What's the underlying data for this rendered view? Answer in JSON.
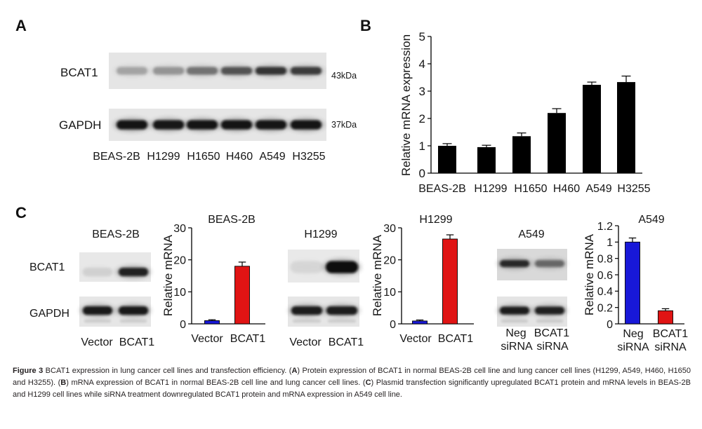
{
  "panel_labels": {
    "a": "A",
    "b": "B",
    "c": "C"
  },
  "panel_a": {
    "rows": [
      {
        "label": "BCAT1",
        "size": "43kDa",
        "band_intensity": [
          0.24,
          0.3,
          0.45,
          0.6,
          0.76,
          0.72
        ]
      },
      {
        "label": "GAPDH",
        "size": "37kDa",
        "band_intensity": [
          0.95,
          0.93,
          0.95,
          0.95,
          0.94,
          0.95
        ]
      }
    ],
    "lanes": [
      "BEAS-2B",
      "H1299",
      "H1650",
      "H460",
      "A549",
      "H3255"
    ]
  },
  "panel_c": {
    "row_labels": [
      "BCAT1",
      "GAPDH"
    ],
    "blots": [
      {
        "title": "BEAS-2B",
        "lanes": [
          [
            "Vector"
          ],
          [
            "BCAT1"
          ]
        ],
        "band_intensity": [
          [
            0.08,
            0.88
          ],
          [
            0.92,
            0.92
          ]
        ]
      },
      {
        "title": "H1299",
        "lanes": [
          [
            "Vector"
          ],
          [
            "BCAT1"
          ]
        ],
        "band_intensity": [
          [
            0.06,
            1.0
          ],
          [
            0.9,
            0.9
          ]
        ]
      },
      {
        "title": "A549",
        "lanes": [
          [
            "Neg",
            "siRNA"
          ],
          [
            "BCAT1",
            "siRNA"
          ]
        ],
        "band_intensity": [
          [
            0.82,
            0.48
          ],
          [
            0.9,
            0.88
          ]
        ]
      }
    ]
  },
  "chart_data": [
    {
      "type": "bar",
      "categories": [
        "BEAS-2B",
        "H1299",
        "H1650",
        "H460",
        "A549",
        "H3255"
      ],
      "values": [
        1.0,
        0.95,
        1.35,
        2.2,
        3.23,
        3.33
      ],
      "errors": [
        0.08,
        0.07,
        0.12,
        0.16,
        0.1,
        0.22
      ],
      "ylabel": "Relative mRNA expression",
      "ylim": [
        0,
        5
      ],
      "yticks": [
        0,
        1,
        2,
        3,
        4,
        5
      ],
      "colors": [
        "#000000",
        "#000000",
        "#000000",
        "#000000",
        "#000000",
        "#000000"
      ],
      "grid": false
    },
    {
      "type": "bar",
      "title": "BEAS-2B",
      "categories": [
        "Vector",
        "BCAT1"
      ],
      "values": [
        1.0,
        18.0
      ],
      "errors": [
        0.3,
        1.3
      ],
      "ylabel": "Relative mRNA",
      "ylim": [
        0,
        30
      ],
      "yticks": [
        0,
        10,
        20,
        30
      ],
      "colors": [
        "#1818d8",
        "#e01414"
      ],
      "grid": false
    },
    {
      "type": "bar",
      "title": "H1299",
      "categories": [
        "Vector",
        "BCAT1"
      ],
      "values": [
        0.9,
        26.5
      ],
      "errors": [
        0.3,
        1.3
      ],
      "ylabel": "Relative mRNA",
      "ylim": [
        0,
        30
      ],
      "yticks": [
        0,
        10,
        20,
        30
      ],
      "colors": [
        "#1818d8",
        "#e01414"
      ],
      "grid": false
    },
    {
      "type": "bar",
      "title": "A549",
      "categories": [
        "Neg siRNA",
        "BCAT1 siRNA"
      ],
      "values": [
        1.0,
        0.16
      ],
      "errors": [
        0.05,
        0.025
      ],
      "ylabel": "Relative mRNA",
      "ylim": [
        0,
        1.2
      ],
      "yticks": [
        0,
        0.2,
        0.4,
        0.6,
        0.8,
        1,
        1.2
      ],
      "colors": [
        "#1818d8",
        "#e01414"
      ],
      "grid": false
    }
  ],
  "caption": {
    "segments": [
      "Figure 3",
      " BCAT1 expression in lung cancer cell lines and transfection efficiency. (",
      "A",
      ") Protein expression of BCAT1 in normal BEAS-2B cell line and lung cancer cell lines (H1299, A549, H460, H1650 and H3255). (",
      "B",
      ") mRNA expression of BCAT1 in normal BEAS-2B cell line and lung cancer cell lines. (",
      "C",
      ") Plasmid transfection significantly upregulated BCAT1 protein and mRNA levels in BEAS-2B and H1299 cell lines while siRNA treatment downregulated BCAT1 protein and mRNA expression in A549 cell line."
    ]
  }
}
